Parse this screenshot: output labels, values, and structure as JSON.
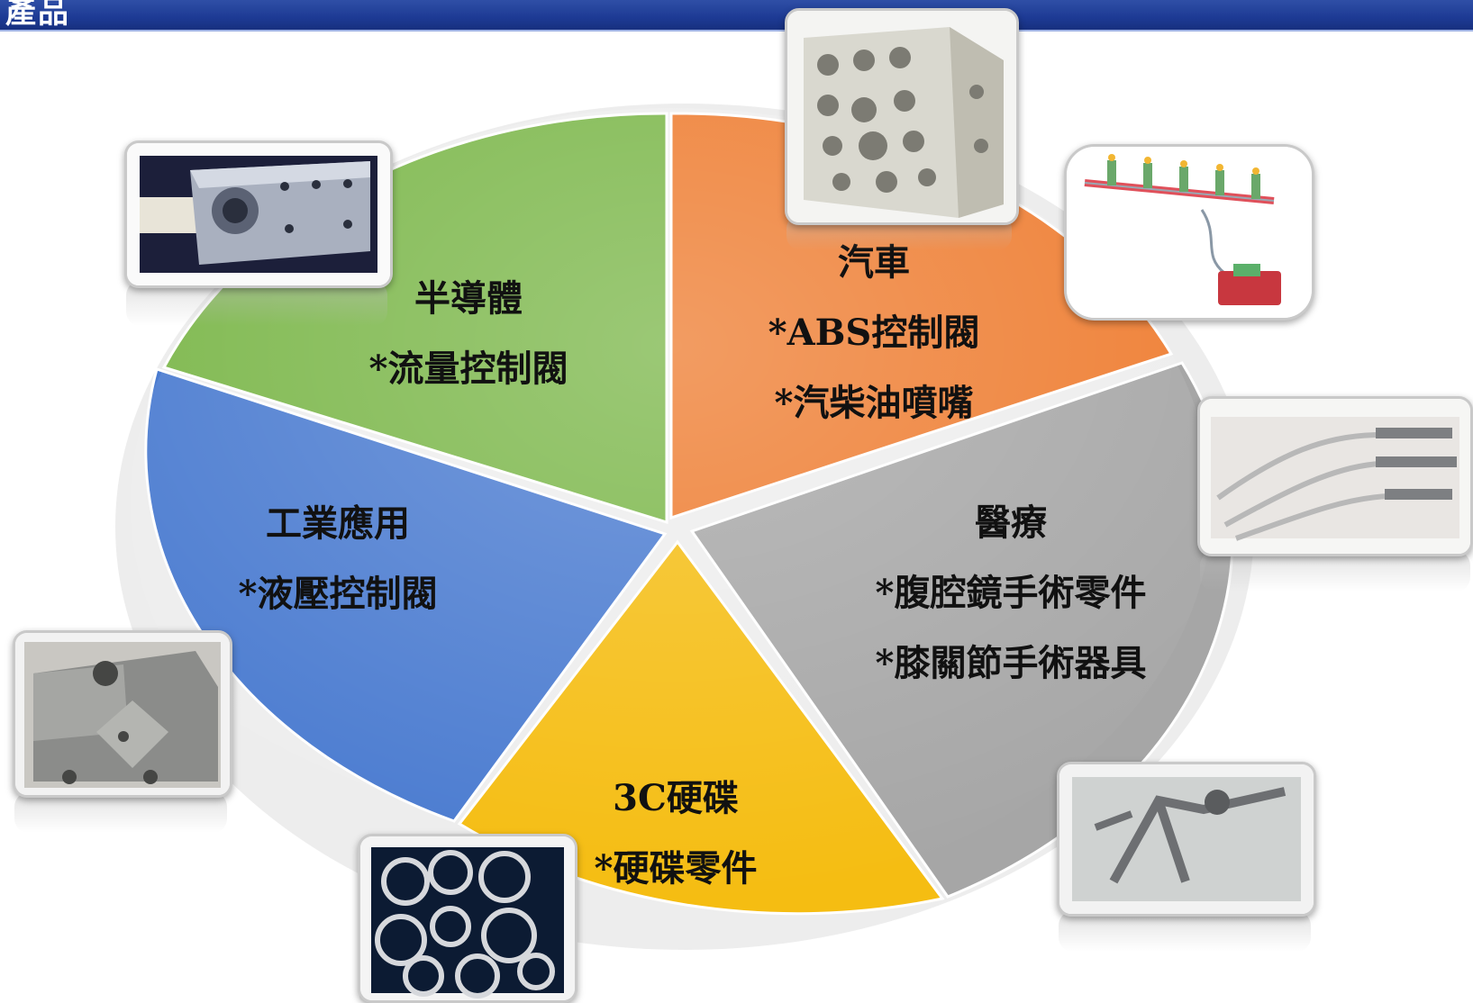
{
  "header": {
    "title": "產品"
  },
  "segments": [
    {
      "id": "semiconductor",
      "title": "半導體",
      "items": [
        "*流量控制閥"
      ],
      "color": "#7ab648"
    },
    {
      "id": "automotive",
      "title": "汽車",
      "items": [
        "*ABS控制閥",
        "*汽柴油噴嘴"
      ],
      "color": "#ee7b2e"
    },
    {
      "id": "medical",
      "title": "醫療",
      "items": [
        "*腹腔鏡手術零件",
        "*膝關節手術器具"
      ],
      "color": "#a6a6a6"
    },
    {
      "id": "hdd",
      "title": "3C硬碟",
      "items": [
        "*硬碟零件"
      ],
      "color": "#f5bd12"
    },
    {
      "id": "industrial",
      "title": "工業應用",
      "items": [
        "*液壓控制閥"
      ],
      "color": "#4a7bd0"
    }
  ]
}
